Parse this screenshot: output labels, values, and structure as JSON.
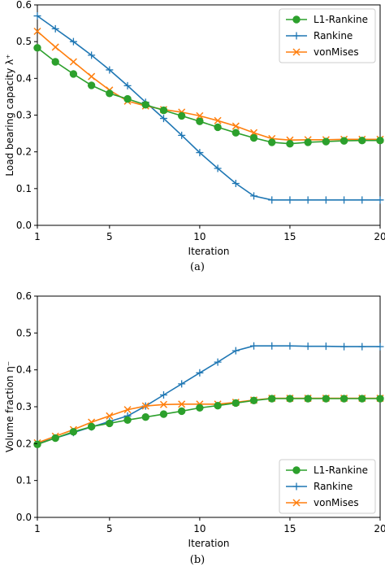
{
  "chart_data": [
    {
      "type": "line",
      "caption": "(a)",
      "xlabel": "Iteration",
      "ylabel": "Load bearing capacity λ⁺",
      "xlim": [
        1,
        20
      ],
      "ylim": [
        0,
        0.6
      ],
      "xticks": [
        1,
        5,
        10,
        15,
        20
      ],
      "yticks": [
        0.0,
        0.1,
        0.2,
        0.3,
        0.4,
        0.5,
        0.6
      ],
      "grid": false,
      "legend": "top-right",
      "x": [
        1,
        2,
        3,
        4,
        5,
        6,
        7,
        8,
        9,
        10,
        11,
        12,
        13,
        14,
        15,
        16,
        17,
        18,
        19,
        20
      ],
      "series": [
        {
          "name": "L1-Rankine",
          "color": "#2ca02c",
          "marker": "circle",
          "values": [
            0.483,
            0.445,
            0.412,
            0.381,
            0.359,
            0.344,
            0.328,
            0.313,
            0.298,
            0.283,
            0.267,
            0.252,
            0.238,
            0.226,
            0.222,
            0.226,
            0.228,
            0.23,
            0.231,
            0.231
          ]
        },
        {
          "name": "Rankine",
          "color": "#1f77b4",
          "marker": "plus",
          "values": [
            0.57,
            0.535,
            0.5,
            0.463,
            0.423,
            0.38,
            0.335,
            0.291,
            0.245,
            0.198,
            0.155,
            0.114,
            0.08,
            0.069,
            0.069,
            0.069,
            0.069,
            0.069,
            0.069,
            0.069
          ]
        },
        {
          "name": "vonMises",
          "color": "#ff7f0e",
          "marker": "x",
          "values": [
            0.528,
            0.485,
            0.445,
            0.405,
            0.368,
            0.338,
            0.325,
            0.315,
            0.308,
            0.298,
            0.285,
            0.27,
            0.252,
            0.236,
            0.232,
            0.233,
            0.233,
            0.234,
            0.234,
            0.234
          ]
        }
      ]
    },
    {
      "type": "line",
      "caption": "(b)",
      "xlabel": "Iteration",
      "ylabel": "Volume fraction η⁻",
      "xlim": [
        1,
        20
      ],
      "ylim": [
        0,
        0.6
      ],
      "xticks": [
        1,
        5,
        10,
        15,
        20
      ],
      "yticks": [
        0.0,
        0.1,
        0.2,
        0.3,
        0.4,
        0.5,
        0.6
      ],
      "grid": false,
      "legend": "bottom-right",
      "x": [
        1,
        2,
        3,
        4,
        5,
        6,
        7,
        8,
        9,
        10,
        11,
        12,
        13,
        14,
        15,
        16,
        17,
        18,
        19,
        20
      ],
      "series": [
        {
          "name": "L1-Rankine",
          "color": "#2ca02c",
          "marker": "circle",
          "values": [
            0.198,
            0.215,
            0.232,
            0.246,
            0.255,
            0.264,
            0.272,
            0.28,
            0.288,
            0.297,
            0.303,
            0.31,
            0.317,
            0.322,
            0.322,
            0.322,
            0.322,
            0.322,
            0.322,
            0.322
          ]
        },
        {
          "name": "Rankine",
          "color": "#1f77b4",
          "marker": "plus",
          "values": [
            0.2,
            0.215,
            0.23,
            0.245,
            0.26,
            0.275,
            0.302,
            0.332,
            0.362,
            0.392,
            0.421,
            0.452,
            0.465,
            0.465,
            0.465,
            0.464,
            0.464,
            0.463,
            0.463,
            0.463
          ]
        },
        {
          "name": "vonMises",
          "color": "#ff7f0e",
          "marker": "x",
          "values": [
            0.202,
            0.22,
            0.238,
            0.258,
            0.275,
            0.292,
            0.302,
            0.306,
            0.307,
            0.307,
            0.307,
            0.312,
            0.318,
            0.323,
            0.323,
            0.323,
            0.323,
            0.323,
            0.323,
            0.323
          ]
        }
      ]
    }
  ]
}
